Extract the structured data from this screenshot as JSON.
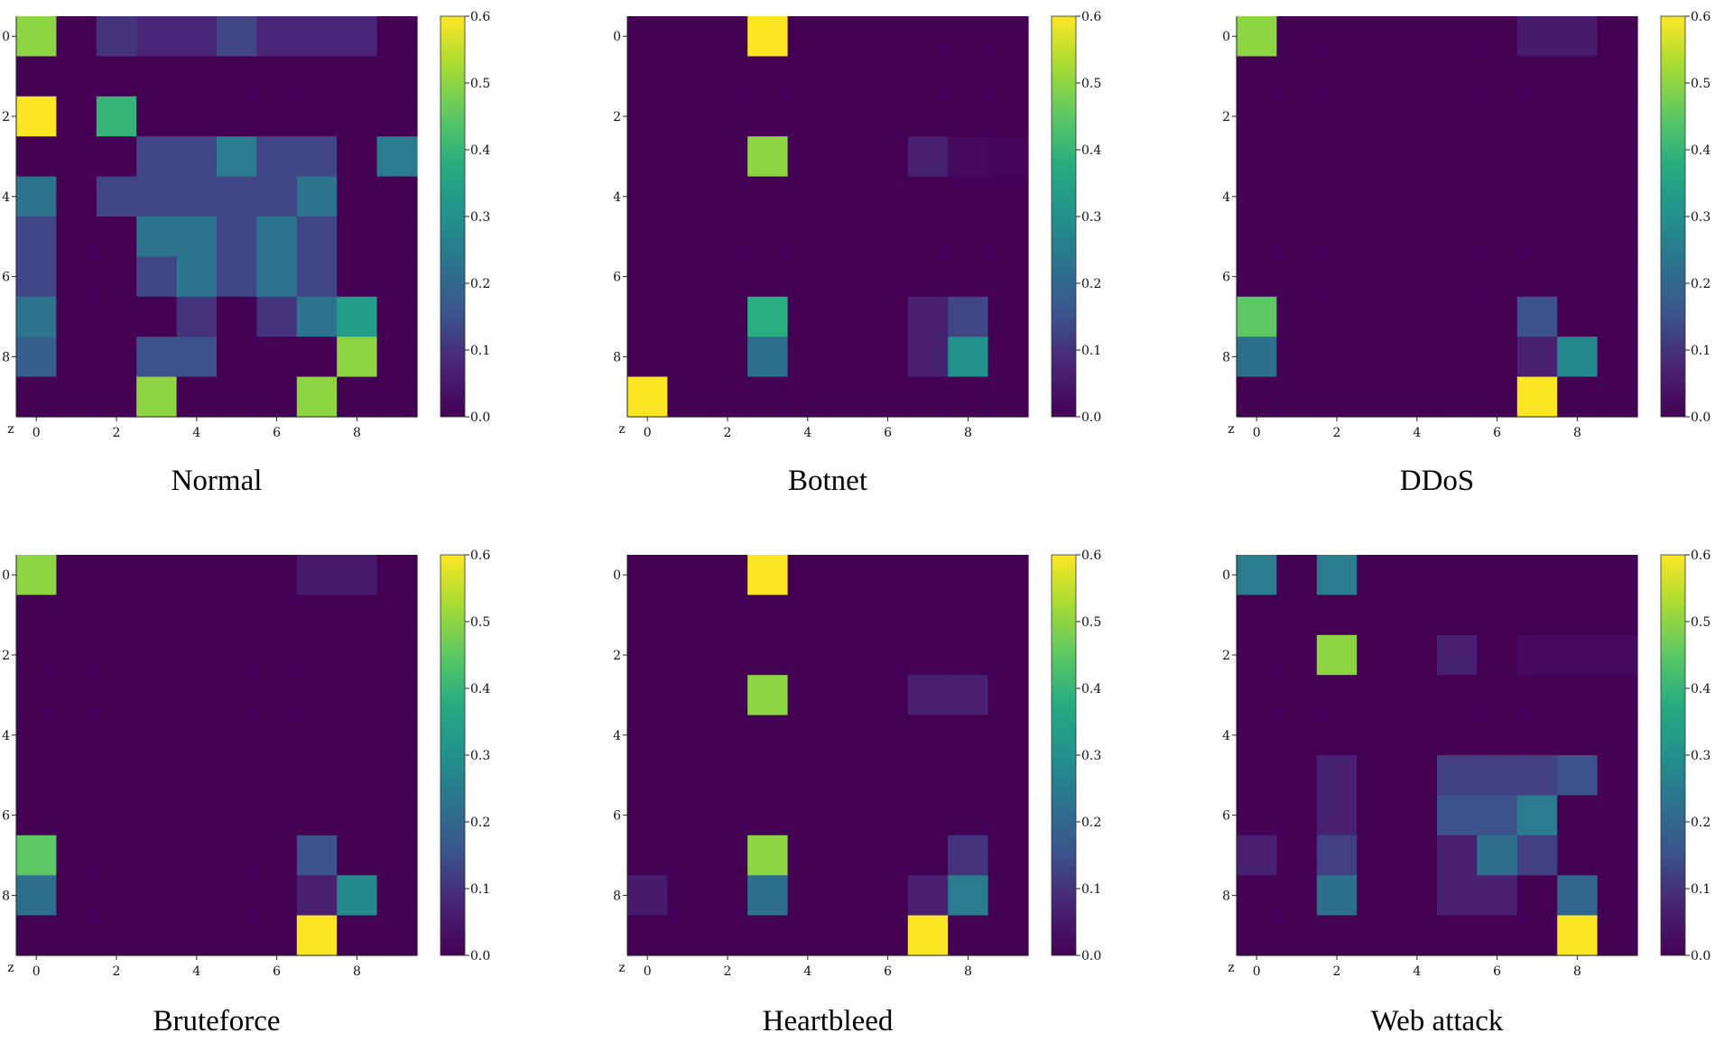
{
  "chart_data": [
    {
      "type": "heatmap",
      "title": "Normal",
      "corner_label": "z",
      "rows": 10,
      "cols": 10,
      "x_ticks": [
        0,
        2,
        4,
        6,
        8
      ],
      "y_ticks": [
        0,
        2,
        4,
        6,
        8
      ],
      "colorbar": {
        "min": 0.0,
        "max": 0.6,
        "ticks": [
          "0.0",
          "0.1",
          "0.2",
          "0.3",
          "0.4",
          "0.5",
          "0.6"
        ]
      },
      "values": [
        [
          0.5,
          0.0,
          0.1,
          0.08,
          0.08,
          0.13,
          0.08,
          0.08,
          0.08,
          0.0
        ],
        [
          0.0,
          0.0,
          0.0,
          0.0,
          0.0,
          0.0,
          0.0,
          0.0,
          0.0,
          0.0
        ],
        [
          0.6,
          0.0,
          0.4,
          0.0,
          0.0,
          0.0,
          0.0,
          0.0,
          0.0,
          0.0
        ],
        [
          0.0,
          0.0,
          0.0,
          0.13,
          0.13,
          0.25,
          0.13,
          0.13,
          0.0,
          0.25
        ],
        [
          0.23,
          0.0,
          0.13,
          0.13,
          0.13,
          0.13,
          0.13,
          0.23,
          0.0,
          0.0
        ],
        [
          0.13,
          0.0,
          0.0,
          0.23,
          0.23,
          0.13,
          0.23,
          0.13,
          0.0,
          0.0
        ],
        [
          0.13,
          0.0,
          0.0,
          0.13,
          0.23,
          0.13,
          0.23,
          0.13,
          0.0,
          0.0
        ],
        [
          0.23,
          0.0,
          0.0,
          0.0,
          0.1,
          0.0,
          0.1,
          0.23,
          0.33,
          0.0
        ],
        [
          0.18,
          0.0,
          0.0,
          0.15,
          0.15,
          0.0,
          0.0,
          0.0,
          0.5,
          0.0
        ],
        [
          0.0,
          0.0,
          0.0,
          0.5,
          0.0,
          0.0,
          0.0,
          0.5,
          0.0,
          0.0
        ]
      ]
    },
    {
      "type": "heatmap",
      "title": "Botnet",
      "corner_label": "z",
      "rows": 10,
      "cols": 10,
      "x_ticks": [
        0,
        2,
        4,
        6,
        8
      ],
      "y_ticks": [
        0,
        2,
        4,
        6,
        8
      ],
      "colorbar": {
        "min": 0.0,
        "max": 0.6,
        "ticks": [
          "0.0",
          "0.1",
          "0.2",
          "0.3",
          "0.4",
          "0.5",
          "0.6"
        ]
      },
      "values": [
        [
          0.0,
          0.0,
          0.0,
          0.6,
          0.0,
          0.0,
          0.0,
          0.0,
          0.0,
          0.0
        ],
        [
          0.0,
          0.0,
          0.0,
          0.0,
          0.0,
          0.0,
          0.0,
          0.0,
          0.0,
          0.0
        ],
        [
          0.0,
          0.0,
          0.0,
          0.0,
          0.0,
          0.0,
          0.0,
          0.0,
          0.0,
          0.0
        ],
        [
          0.0,
          0.0,
          0.0,
          0.5,
          0.0,
          0.0,
          0.0,
          0.07,
          0.02,
          0.01
        ],
        [
          0.0,
          0.0,
          0.0,
          0.0,
          0.0,
          0.0,
          0.0,
          0.0,
          0.0,
          0.0
        ],
        [
          0.0,
          0.0,
          0.0,
          0.0,
          0.0,
          0.0,
          0.0,
          0.0,
          0.0,
          0.0
        ],
        [
          0.0,
          0.0,
          0.0,
          0.0,
          0.0,
          0.0,
          0.0,
          0.0,
          0.0,
          0.0
        ],
        [
          0.0,
          0.0,
          0.0,
          0.38,
          0.0,
          0.0,
          0.0,
          0.07,
          0.13,
          0.0
        ],
        [
          0.0,
          0.0,
          0.0,
          0.22,
          0.0,
          0.0,
          0.0,
          0.07,
          0.3,
          0.0
        ],
        [
          0.6,
          0.0,
          0.0,
          0.0,
          0.0,
          0.0,
          0.0,
          0.0,
          0.0,
          0.0
        ]
      ]
    },
    {
      "type": "heatmap",
      "title": "DDoS",
      "corner_label": "z",
      "rows": 10,
      "cols": 10,
      "x_ticks": [
        0,
        2,
        4,
        6,
        8
      ],
      "y_ticks": [
        0,
        2,
        4,
        6,
        8
      ],
      "colorbar": {
        "min": 0.0,
        "max": 0.6,
        "ticks": [
          "0.0",
          "0.1",
          "0.2",
          "0.3",
          "0.4",
          "0.5",
          "0.6"
        ]
      },
      "values": [
        [
          0.5,
          0.0,
          0.0,
          0.0,
          0.0,
          0.0,
          0.0,
          0.06,
          0.06,
          0.0
        ],
        [
          0.0,
          0.0,
          0.0,
          0.0,
          0.0,
          0.0,
          0.0,
          0.0,
          0.0,
          0.0
        ],
        [
          0.0,
          0.0,
          0.0,
          0.0,
          0.0,
          0.0,
          0.0,
          0.0,
          0.0,
          0.0
        ],
        [
          0.0,
          0.0,
          0.0,
          0.0,
          0.0,
          0.0,
          0.0,
          0.0,
          0.0,
          0.0
        ],
        [
          0.0,
          0.0,
          0.0,
          0.0,
          0.0,
          0.0,
          0.0,
          0.0,
          0.0,
          0.0
        ],
        [
          0.0,
          0.0,
          0.0,
          0.0,
          0.0,
          0.0,
          0.0,
          0.0,
          0.0,
          0.0
        ],
        [
          0.0,
          0.0,
          0.0,
          0.0,
          0.0,
          0.0,
          0.0,
          0.0,
          0.0,
          0.0
        ],
        [
          0.45,
          0.0,
          0.0,
          0.0,
          0.0,
          0.0,
          0.0,
          0.15,
          0.0,
          0.0
        ],
        [
          0.22,
          0.0,
          0.0,
          0.0,
          0.0,
          0.0,
          0.0,
          0.07,
          0.28,
          0.0
        ],
        [
          0.0,
          0.0,
          0.0,
          0.0,
          0.0,
          0.0,
          0.0,
          0.6,
          0.0,
          0.0
        ]
      ]
    },
    {
      "type": "heatmap",
      "title": "Bruteforce",
      "corner_label": "z",
      "rows": 10,
      "cols": 10,
      "x_ticks": [
        0,
        2,
        4,
        6,
        8
      ],
      "y_ticks": [
        0,
        2,
        4,
        6,
        8
      ],
      "colorbar": {
        "min": 0.0,
        "max": 0.6,
        "ticks": [
          "0.0",
          "0.1",
          "0.2",
          "0.3",
          "0.4",
          "0.5",
          "0.6"
        ]
      },
      "values": [
        [
          0.5,
          0.0,
          0.0,
          0.0,
          0.0,
          0.0,
          0.0,
          0.06,
          0.06,
          0.0
        ],
        [
          0.0,
          0.0,
          0.0,
          0.0,
          0.0,
          0.0,
          0.0,
          0.0,
          0.0,
          0.0
        ],
        [
          0.0,
          0.0,
          0.0,
          0.0,
          0.0,
          0.0,
          0.0,
          0.0,
          0.0,
          0.0
        ],
        [
          0.0,
          0.0,
          0.0,
          0.0,
          0.0,
          0.0,
          0.0,
          0.0,
          0.0,
          0.0
        ],
        [
          0.0,
          0.0,
          0.0,
          0.0,
          0.0,
          0.0,
          0.0,
          0.0,
          0.0,
          0.0
        ],
        [
          0.0,
          0.0,
          0.0,
          0.0,
          0.0,
          0.0,
          0.0,
          0.0,
          0.0,
          0.0
        ],
        [
          0.0,
          0.0,
          0.0,
          0.0,
          0.0,
          0.0,
          0.0,
          0.0,
          0.0,
          0.0
        ],
        [
          0.45,
          0.0,
          0.0,
          0.0,
          0.0,
          0.0,
          0.0,
          0.15,
          0.0,
          0.0
        ],
        [
          0.22,
          0.0,
          0.0,
          0.0,
          0.0,
          0.0,
          0.0,
          0.07,
          0.28,
          0.0
        ],
        [
          0.0,
          0.0,
          0.0,
          0.0,
          0.0,
          0.0,
          0.0,
          0.6,
          0.0,
          0.0
        ]
      ]
    },
    {
      "type": "heatmap",
      "title": "Heartbleed",
      "corner_label": "z",
      "rows": 10,
      "cols": 10,
      "x_ticks": [
        0,
        2,
        4,
        6,
        8
      ],
      "y_ticks": [
        0,
        2,
        4,
        6,
        8
      ],
      "colorbar": {
        "min": 0.0,
        "max": 0.6,
        "ticks": [
          "0.0",
          "0.1",
          "0.2",
          "0.3",
          "0.4",
          "0.5",
          "0.6"
        ]
      },
      "values": [
        [
          0.0,
          0.0,
          0.0,
          0.6,
          0.0,
          0.0,
          0.0,
          0.0,
          0.0,
          0.0
        ],
        [
          0.0,
          0.0,
          0.0,
          0.0,
          0.0,
          0.0,
          0.0,
          0.0,
          0.0,
          0.0
        ],
        [
          0.0,
          0.0,
          0.0,
          0.0,
          0.0,
          0.0,
          0.0,
          0.0,
          0.0,
          0.0
        ],
        [
          0.0,
          0.0,
          0.0,
          0.5,
          0.0,
          0.0,
          0.0,
          0.07,
          0.07,
          0.0
        ],
        [
          0.0,
          0.0,
          0.0,
          0.0,
          0.0,
          0.0,
          0.0,
          0.0,
          0.0,
          0.0
        ],
        [
          0.0,
          0.0,
          0.0,
          0.0,
          0.0,
          0.0,
          0.0,
          0.0,
          0.0,
          0.0
        ],
        [
          0.0,
          0.0,
          0.0,
          0.0,
          0.0,
          0.0,
          0.0,
          0.0,
          0.0,
          0.0
        ],
        [
          0.0,
          0.0,
          0.0,
          0.5,
          0.0,
          0.0,
          0.0,
          0.0,
          0.1,
          0.0
        ],
        [
          0.06,
          0.0,
          0.0,
          0.22,
          0.0,
          0.0,
          0.0,
          0.07,
          0.25,
          0.0
        ],
        [
          0.0,
          0.0,
          0.0,
          0.0,
          0.0,
          0.0,
          0.0,
          0.6,
          0.0,
          0.0
        ]
      ]
    },
    {
      "type": "heatmap",
      "title": "Web attack",
      "corner_label": "z",
      "rows": 10,
      "cols": 10,
      "x_ticks": [
        0,
        2,
        4,
        6,
        8
      ],
      "y_ticks": [
        0,
        2,
        4,
        6,
        8
      ],
      "colorbar": {
        "min": 0.0,
        "max": 0.6,
        "ticks": [
          "0.0",
          "0.1",
          "0.2",
          "0.3",
          "0.4",
          "0.5",
          "0.6"
        ]
      },
      "values": [
        [
          0.25,
          0.0,
          0.25,
          0.0,
          0.0,
          0.0,
          0.0,
          0.0,
          0.0,
          0.0
        ],
        [
          0.0,
          0.0,
          0.0,
          0.0,
          0.0,
          0.0,
          0.0,
          0.0,
          0.0,
          0.0
        ],
        [
          0.0,
          0.0,
          0.5,
          0.0,
          0.0,
          0.07,
          0.0,
          0.02,
          0.02,
          0.02
        ],
        [
          0.0,
          0.0,
          0.0,
          0.0,
          0.0,
          0.0,
          0.0,
          0.0,
          0.0,
          0.0
        ],
        [
          0.0,
          0.0,
          0.0,
          0.0,
          0.0,
          0.0,
          0.0,
          0.0,
          0.0,
          0.0
        ],
        [
          0.0,
          0.0,
          0.07,
          0.0,
          0.0,
          0.12,
          0.12,
          0.12,
          0.15,
          0.0
        ],
        [
          0.0,
          0.0,
          0.07,
          0.0,
          0.0,
          0.15,
          0.15,
          0.25,
          0.0,
          0.0
        ],
        [
          0.07,
          0.0,
          0.12,
          0.0,
          0.0,
          0.07,
          0.22,
          0.12,
          0.0,
          0.0
        ],
        [
          0.0,
          0.0,
          0.22,
          0.0,
          0.0,
          0.07,
          0.07,
          0.0,
          0.2,
          0.0
        ],
        [
          0.0,
          0.0,
          0.0,
          0.0,
          0.0,
          0.0,
          0.0,
          0.0,
          0.6,
          0.0
        ]
      ]
    }
  ]
}
